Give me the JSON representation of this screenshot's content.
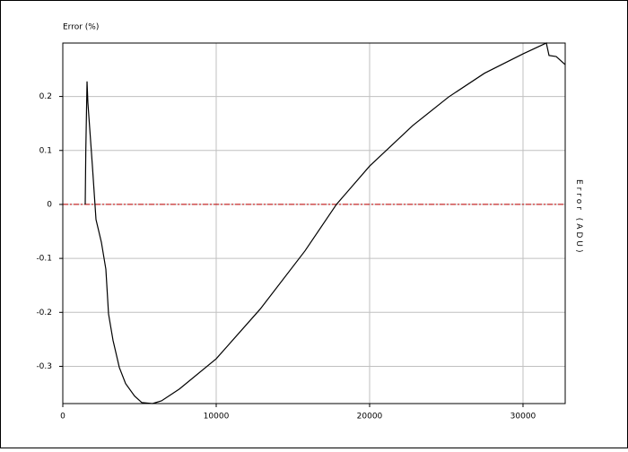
{
  "chart_data": {
    "type": "line",
    "title": "Error (%)",
    "y2_label": "Error (ADU)",
    "x": [
      1462,
      1500,
      1580,
      1637,
      1930,
      2164,
      2515,
      2807,
      2982,
      3275,
      3684,
      4094,
      4678,
      5146,
      5848,
      6433,
      7602,
      10000,
      12865,
      15789,
      17836,
      20000,
      22807,
      25146,
      27485,
      30000,
      31287,
      31520,
      31696,
      32164,
      32749
    ],
    "series": [
      {
        "color": "#000000",
        "values": [
          0,
          0.1,
          0.228,
          0.188,
          0.071,
          -0.028,
          -0.07,
          -0.12,
          -0.203,
          -0.252,
          -0.302,
          -0.332,
          -0.355,
          -0.367,
          -0.369,
          -0.364,
          -0.342,
          -0.286,
          -0.194,
          -0.086,
          0,
          0.071,
          0.146,
          0.199,
          0.243,
          0.279,
          0.296,
          0.299,
          0.276,
          0.274,
          0.259
        ]
      }
    ],
    "xlim": [
      0,
      32750
    ],
    "xticks": [
      0,
      10000,
      20000,
      30000
    ],
    "ylim": [
      -0.369,
      0.299
    ],
    "yticks": [
      -0.3,
      -0.2,
      -0.1,
      0,
      0.1,
      0.2
    ],
    "grid": true,
    "grid_color": "#c0c0c0",
    "reference_line": {
      "value": 0,
      "color": "#c00000"
    }
  }
}
